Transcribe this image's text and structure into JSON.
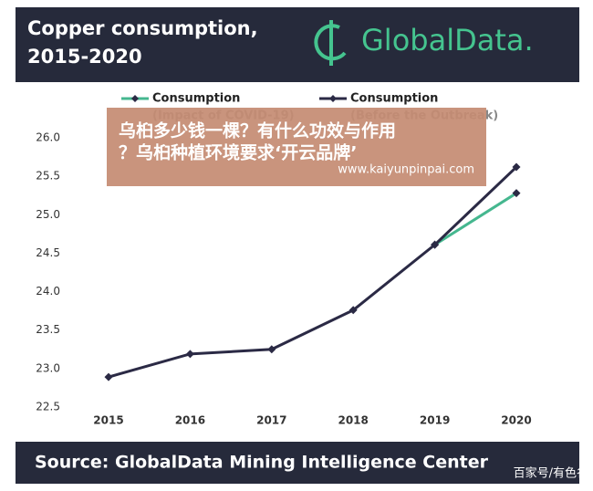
{
  "chart_data": {
    "type": "line",
    "title": [
      "Copper consumption,",
      "2015-2020"
    ],
    "categories": [
      "2015",
      "2016",
      "2017",
      "2018",
      "2019",
      "2020"
    ],
    "series": [
      {
        "name": "Consumption",
        "note": "(Impact of COVID-19)",
        "color": "#45b78f",
        "values": [
          null,
          null,
          null,
          null,
          24.61,
          25.28
        ]
      },
      {
        "name": "Consumption",
        "note": "(Before the Outbreak)",
        "color": "#2b2a45",
        "values": [
          22.89,
          23.19,
          23.25,
          23.76,
          24.61,
          25.62
        ]
      }
    ],
    "ylim": [
      22.5,
      26.0
    ],
    "yticks": [
      22.5,
      {
        "value": 23,
        "label": "23.0"
      },
      23.5,
      {
        "value": 24,
        "label": "24.0"
      },
      24.5,
      {
        "value": 25,
        "label": "25.0"
      },
      25.5,
      {
        "value": 26,
        "label": "26.0"
      }
    ],
    "grid": false,
    "legend": "top"
  },
  "logo": "GlobalData.",
  "source": "Source:  GlobalData Mining Intelligence Center",
  "overlay": {
    "line1": "乌桕多少钱一棵？有什么功效与作用",
    "line2": "？乌桕种植环境要求‘开云品牌’",
    "url": "www.kaiyunpinpai.com"
  },
  "credit": "百家号/有色谷"
}
